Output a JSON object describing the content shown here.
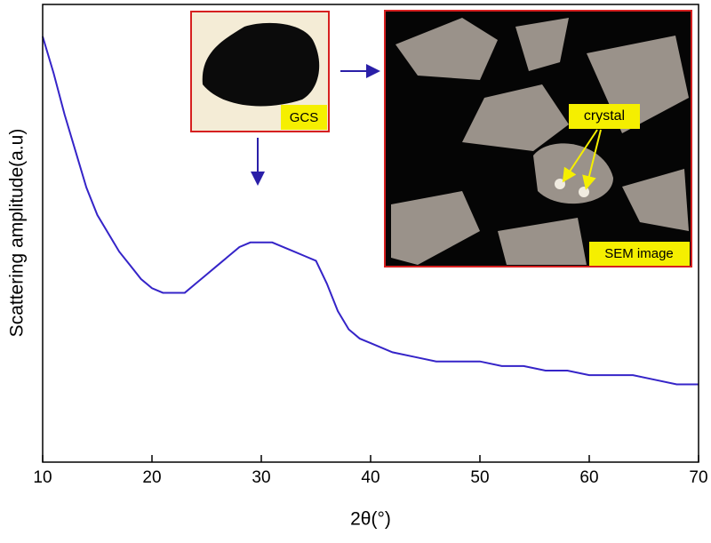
{
  "chart_data": {
    "type": "line",
    "x_label": "2θ(°)",
    "y_label": "Scattering amplitude(a.u)",
    "x": [
      10,
      11,
      12,
      13,
      14,
      15,
      16,
      17,
      18,
      19,
      20,
      21,
      22,
      23,
      24,
      25,
      26,
      27,
      28,
      29,
      30,
      31,
      32,
      33,
      34,
      35,
      36,
      37,
      38,
      39,
      40,
      42,
      44,
      46,
      48,
      50,
      52,
      54,
      56,
      58,
      60,
      62,
      64,
      66,
      68,
      70
    ],
    "series": [
      {
        "color": "#3524c8",
        "values": [
          93,
          85,
          76,
          68,
          60,
          54,
          50,
          46,
          43,
          40,
          38,
          37,
          37,
          37,
          39,
          41,
          43,
          45,
          47,
          48,
          48,
          48,
          47,
          46,
          45,
          44,
          39,
          33,
          29,
          27,
          26,
          24,
          23,
          22,
          22,
          22,
          21,
          21,
          20,
          20,
          19,
          19,
          19,
          18,
          17,
          17
        ]
      }
    ],
    "xlim": [
      10,
      70
    ],
    "xticks": [
      10,
      20,
      30,
      40,
      50,
      60,
      70
    ],
    "ylim": [
      0,
      100
    ],
    "annotations": {
      "photo_label": "GCS",
      "crystal_label": "crystal",
      "sem_label": "SEM image"
    }
  }
}
